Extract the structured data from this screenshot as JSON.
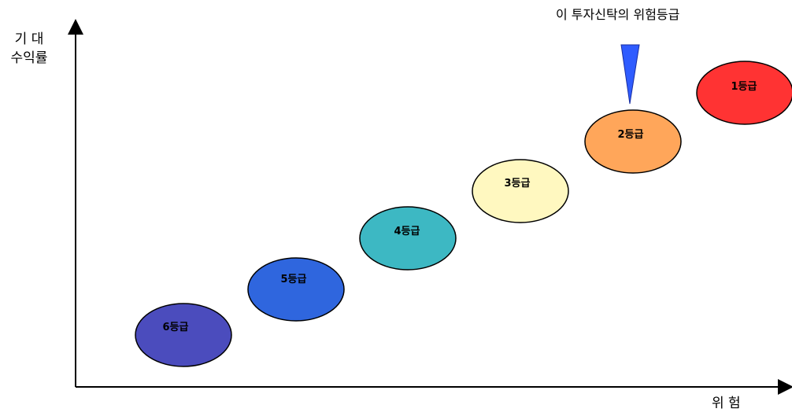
{
  "y_axis": {
    "line1": "기 대",
    "line2": "수익률"
  },
  "x_axis": {
    "label": "위 험"
  },
  "pointer": {
    "label": "이 투자신탁의 위험등급",
    "target_grade": "2등급",
    "color": "#2f5cff"
  },
  "grades": [
    {
      "label": "6등급",
      "color": "#4b4cbd"
    },
    {
      "label": "5등급",
      "color": "#2f66de"
    },
    {
      "label": "4등급",
      "color": "#3db8c3"
    },
    {
      "label": "3등급",
      "color": "#fff8c0"
    },
    {
      "label": "2등급",
      "color": "#ffa65a"
    },
    {
      "label": "1등급",
      "color": "#ff3333"
    }
  ]
}
